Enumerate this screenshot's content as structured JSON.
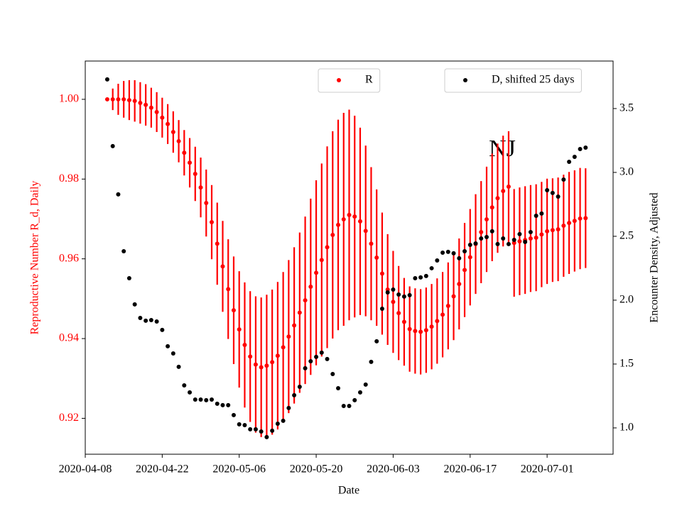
{
  "chart_data": {
    "type": "errorbar_scatter",
    "annotation": "NJ",
    "xlabel": "Date",
    "ylabel": "Reproductive Number R_d, Daily",
    "y2label": "Encounter Density, Adjusted",
    "x": [
      "2020-04-12",
      "2020-04-13",
      "2020-04-14",
      "2020-04-15",
      "2020-04-16",
      "2020-04-17",
      "2020-04-18",
      "2020-04-19",
      "2020-04-20",
      "2020-04-21",
      "2020-04-22",
      "2020-04-23",
      "2020-04-24",
      "2020-04-25",
      "2020-04-26",
      "2020-04-27",
      "2020-04-28",
      "2020-04-29",
      "2020-04-30",
      "2020-05-01",
      "2020-05-02",
      "2020-05-03",
      "2020-05-04",
      "2020-05-05",
      "2020-05-06",
      "2020-05-07",
      "2020-05-08",
      "2020-05-09",
      "2020-05-10",
      "2020-05-11",
      "2020-05-12",
      "2020-05-13",
      "2020-05-14",
      "2020-05-15",
      "2020-05-16",
      "2020-05-17",
      "2020-05-18",
      "2020-05-19",
      "2020-05-20",
      "2020-05-21",
      "2020-05-22",
      "2020-05-23",
      "2020-05-24",
      "2020-05-25",
      "2020-05-26",
      "2020-05-27",
      "2020-05-28",
      "2020-05-29",
      "2020-05-30",
      "2020-05-31",
      "2020-06-01",
      "2020-06-02",
      "2020-06-03",
      "2020-06-04",
      "2020-06-05",
      "2020-06-06",
      "2020-06-07",
      "2020-06-08",
      "2020-06-09",
      "2020-06-10",
      "2020-06-11",
      "2020-06-12",
      "2020-06-13",
      "2020-06-14",
      "2020-06-15",
      "2020-06-16",
      "2020-06-17",
      "2020-06-18",
      "2020-06-19",
      "2020-06-20",
      "2020-06-21",
      "2020-06-22",
      "2020-06-23",
      "2020-06-24",
      "2020-06-25",
      "2020-06-26",
      "2020-06-27",
      "2020-06-28",
      "2020-06-29",
      "2020-06-30",
      "2020-07-01",
      "2020-07-02",
      "2020-07-03",
      "2020-07-04",
      "2020-07-05",
      "2020-07-06",
      "2020-07-07",
      "2020-07-08"
    ],
    "series": [
      {
        "name": "R",
        "color": "#ff0000",
        "legend": "upper center",
        "values": [
          1.0,
          1.0,
          1.0,
          1.0,
          0.9998,
          0.9996,
          0.9991,
          0.9986,
          0.9979,
          0.9968,
          0.9954,
          0.9938,
          0.9918,
          0.9895,
          0.9866,
          0.9841,
          0.9813,
          0.9779,
          0.974,
          0.9692,
          0.9638,
          0.9581,
          0.9524,
          0.9471,
          0.9423,
          0.9384,
          0.9355,
          0.9335,
          0.9328,
          0.9332,
          0.9341,
          0.9357,
          0.9378,
          0.9405,
          0.9433,
          0.9465,
          0.9496,
          0.953,
          0.9565,
          0.9597,
          0.9629,
          0.966,
          0.9685,
          0.9699,
          0.971,
          0.9706,
          0.9694,
          0.967,
          0.9638,
          0.9603,
          0.9563,
          0.9523,
          0.9492,
          0.9464,
          0.9442,
          0.9424,
          0.9419,
          0.9417,
          0.9421,
          0.943,
          0.9444,
          0.946,
          0.9482,
          0.9506,
          0.9537,
          0.9572,
          0.9604,
          0.9637,
          0.9667,
          0.9699,
          0.9729,
          0.9752,
          0.977,
          0.9781,
          0.964,
          0.9644,
          0.9647,
          0.9651,
          0.9653,
          0.9661,
          0.9669,
          0.9672,
          0.9674,
          0.9683,
          0.969,
          0.9695,
          0.9701,
          0.9702
        ],
        "errors": [
          0,
          0.0027,
          0.0039,
          0.0046,
          0.005,
          0.0052,
          0.0052,
          0.0052,
          0.005,
          0.005,
          0.005,
          0.005,
          0.0052,
          0.0053,
          0.0057,
          0.0062,
          0.0068,
          0.0075,
          0.0084,
          0.0093,
          0.0103,
          0.0114,
          0.0125,
          0.0135,
          0.0146,
          0.0157,
          0.0164,
          0.0171,
          0.0175,
          0.0178,
          0.0182,
          0.0185,
          0.0189,
          0.0192,
          0.0196,
          0.0201,
          0.021,
          0.0221,
          0.0232,
          0.0242,
          0.0253,
          0.026,
          0.0264,
          0.0267,
          0.0264,
          0.0253,
          0.0235,
          0.0214,
          0.0192,
          0.0171,
          0.0153,
          0.0139,
          0.0128,
          0.0118,
          0.011,
          0.0107,
          0.0107,
          0.0107,
          0.0107,
          0.0107,
          0.0107,
          0.0107,
          0.0109,
          0.011,
          0.0114,
          0.0118,
          0.0121,
          0.0125,
          0.0128,
          0.0132,
          0.0135,
          0.0137,
          0.0139,
          0.0139,
          0.0135,
          0.0135,
          0.0135,
          0.0134,
          0.0134,
          0.0132,
          0.0132,
          0.013,
          0.013,
          0.0128,
          0.0128,
          0.0127,
          0.0127,
          0.0125
        ]
      },
      {
        "name": "D, shifted 25 days",
        "color": "#000000",
        "axis": "y2",
        "legend": "upper right",
        "values": [
          3.728,
          3.206,
          2.828,
          2.383,
          2.172,
          1.967,
          1.861,
          1.839,
          1.844,
          1.833,
          1.767,
          1.639,
          1.583,
          1.478,
          1.333,
          1.278,
          1.222,
          1.222,
          1.217,
          1.222,
          1.189,
          1.178,
          1.178,
          1.1,
          1.028,
          1.022,
          0.989,
          0.989,
          0.972,
          0.928,
          0.978,
          1.033,
          1.056,
          1.156,
          1.256,
          1.322,
          1.467,
          1.522,
          1.556,
          1.589,
          1.539,
          1.422,
          1.311,
          1.172,
          1.172,
          1.217,
          1.278,
          1.339,
          1.517,
          1.678,
          1.933,
          2.061,
          2.083,
          2.044,
          2.028,
          2.039,
          2.172,
          2.178,
          2.189,
          2.25,
          2.311,
          2.372,
          2.378,
          2.367,
          2.328,
          2.383,
          2.433,
          2.444,
          2.483,
          2.494,
          2.539,
          2.439,
          2.483,
          2.439,
          2.472,
          2.517,
          2.456,
          2.533,
          2.661,
          2.678,
          2.861,
          2.839,
          2.811,
          2.944,
          3.083,
          3.122,
          3.183,
          3.194
        ]
      }
    ],
    "xlim": [
      "2020-04-08",
      "2020-07-13"
    ],
    "xticks": [
      "2020-04-08",
      "2020-04-22",
      "2020-05-06",
      "2020-05-20",
      "2020-06-03",
      "2020-06-17",
      "2020-07-01"
    ],
    "ylim": [
      0.911,
      1.0096
    ],
    "yticks": [
      0.92,
      0.94,
      0.96,
      0.98,
      {
        "value": 1.0,
        "label": "1.00"
      }
    ],
    "y2lim": [
      0.794,
      3.872
    ],
    "y2ticks": [
      {
        "value": 1,
        "label": "1.0"
      },
      1.5,
      {
        "value": 2,
        "label": "2.0"
      },
      2.5,
      {
        "value": 3,
        "label": "3.0"
      },
      3.5
    ]
  }
}
